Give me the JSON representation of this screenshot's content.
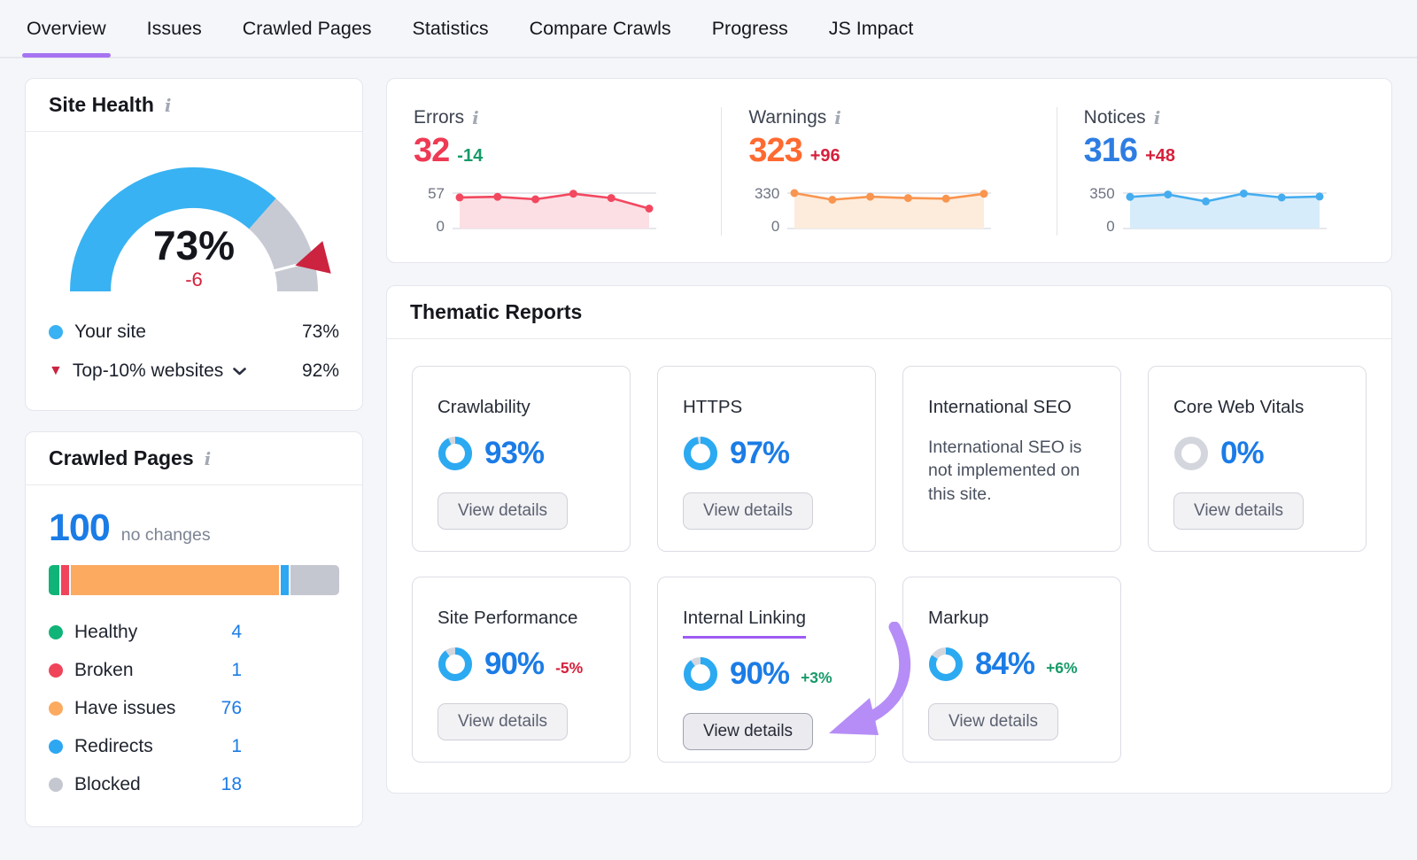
{
  "accent_color": "#a674f2",
  "icons": {
    "info": "i",
    "triangle_down": "▼",
    "dot": "●"
  },
  "nav": {
    "tabs": [
      {
        "label": "Overview",
        "active": true
      },
      {
        "label": "Issues",
        "active": false
      },
      {
        "label": "Crawled Pages",
        "active": false
      },
      {
        "label": "Statistics",
        "active": false
      },
      {
        "label": "Compare Crawls",
        "active": false
      },
      {
        "label": "Progress",
        "active": false
      },
      {
        "label": "JS Impact",
        "active": false
      }
    ]
  },
  "site_health": {
    "title": "Site Health",
    "value_label": "73%",
    "change": "-6",
    "gauge": {
      "value": 73,
      "benchmark": 92,
      "color": "#38b2f2",
      "track": "#c7cad3",
      "marker": "#cc2340"
    },
    "legend": [
      {
        "label": "Your site",
        "value": "73%"
      },
      {
        "label": "Top-10% websites",
        "value": "92%"
      }
    ]
  },
  "crawled_pages": {
    "title": "Crawled Pages",
    "total": "100",
    "total_note": "no changes",
    "segments": [
      {
        "label": "Healthy",
        "value": 4,
        "color": "#10b478"
      },
      {
        "label": "Broken",
        "value": 1,
        "color": "#f0445a"
      },
      {
        "label": "Have issues",
        "value": 76,
        "color": "#fbaa60"
      },
      {
        "label": "Redirects",
        "value": 1,
        "color": "#2da7f2"
      },
      {
        "label": "Blocked",
        "value": 18,
        "color": "#c4c7d0"
      }
    ]
  },
  "issues_summary": {
    "items": [
      {
        "label": "Errors",
        "value": "32",
        "change": "-14",
        "value_color": "#ee3a54",
        "change_color": "#179a68",
        "line_color": "#f2485f",
        "fill_color": "#fbdfe4",
        "ymax": 57,
        "ymax_label": "57",
        "ymin_label": "0",
        "values": [
          50,
          51,
          47,
          56,
          49,
          32
        ]
      },
      {
        "label": "Warnings",
        "value": "323",
        "change": "+96",
        "value_color": "#ff6a30",
        "change_color": "#d6203c",
        "line_color": "#f9954f",
        "fill_color": "#fdecdc",
        "ymax": 330,
        "ymax_label": "330",
        "ymin_label": "0",
        "values": [
          330,
          268,
          296,
          284,
          278,
          323
        ]
      },
      {
        "label": "Notices",
        "value": "316",
        "change": "+48",
        "value_color": "#2e7de2",
        "change_color": "#d6203c",
        "line_color": "#45adef",
        "fill_color": "#d7ecfa",
        "ymax": 350,
        "ymax_label": "350",
        "ymin_label": "0",
        "values": [
          312,
          336,
          268,
          346,
          306,
          316
        ]
      }
    ]
  },
  "thematic": {
    "title": "Thematic Reports",
    "view_details_label": "View details",
    "donut_color": "#2baaf2",
    "donut_track": "#d4d6de",
    "cards": [
      {
        "title": "Crawlability",
        "percent": 93,
        "percent_label": "93%",
        "has_button": true
      },
      {
        "title": "HTTPS",
        "percent": 97,
        "percent_label": "97%",
        "has_button": true
      },
      {
        "title": "International SEO",
        "message": "International SEO is not implemented on this site."
      },
      {
        "title": "Core Web Vitals",
        "percent": 0,
        "percent_label": "0%",
        "has_button": true
      },
      {
        "title": "Site Performance",
        "percent": 90,
        "percent_label": "90%",
        "change": "-5%",
        "change_color": "#d6203c",
        "has_button": true
      },
      {
        "title": "Internal Linking",
        "percent": 90,
        "percent_label": "90%",
        "change": "+3%",
        "change_color": "#179a68",
        "has_button": true,
        "highlighted": true
      },
      {
        "title": "Markup",
        "percent": 84,
        "percent_label": "84%",
        "change": "+6%",
        "change_color": "#179a68",
        "has_button": true
      }
    ]
  }
}
